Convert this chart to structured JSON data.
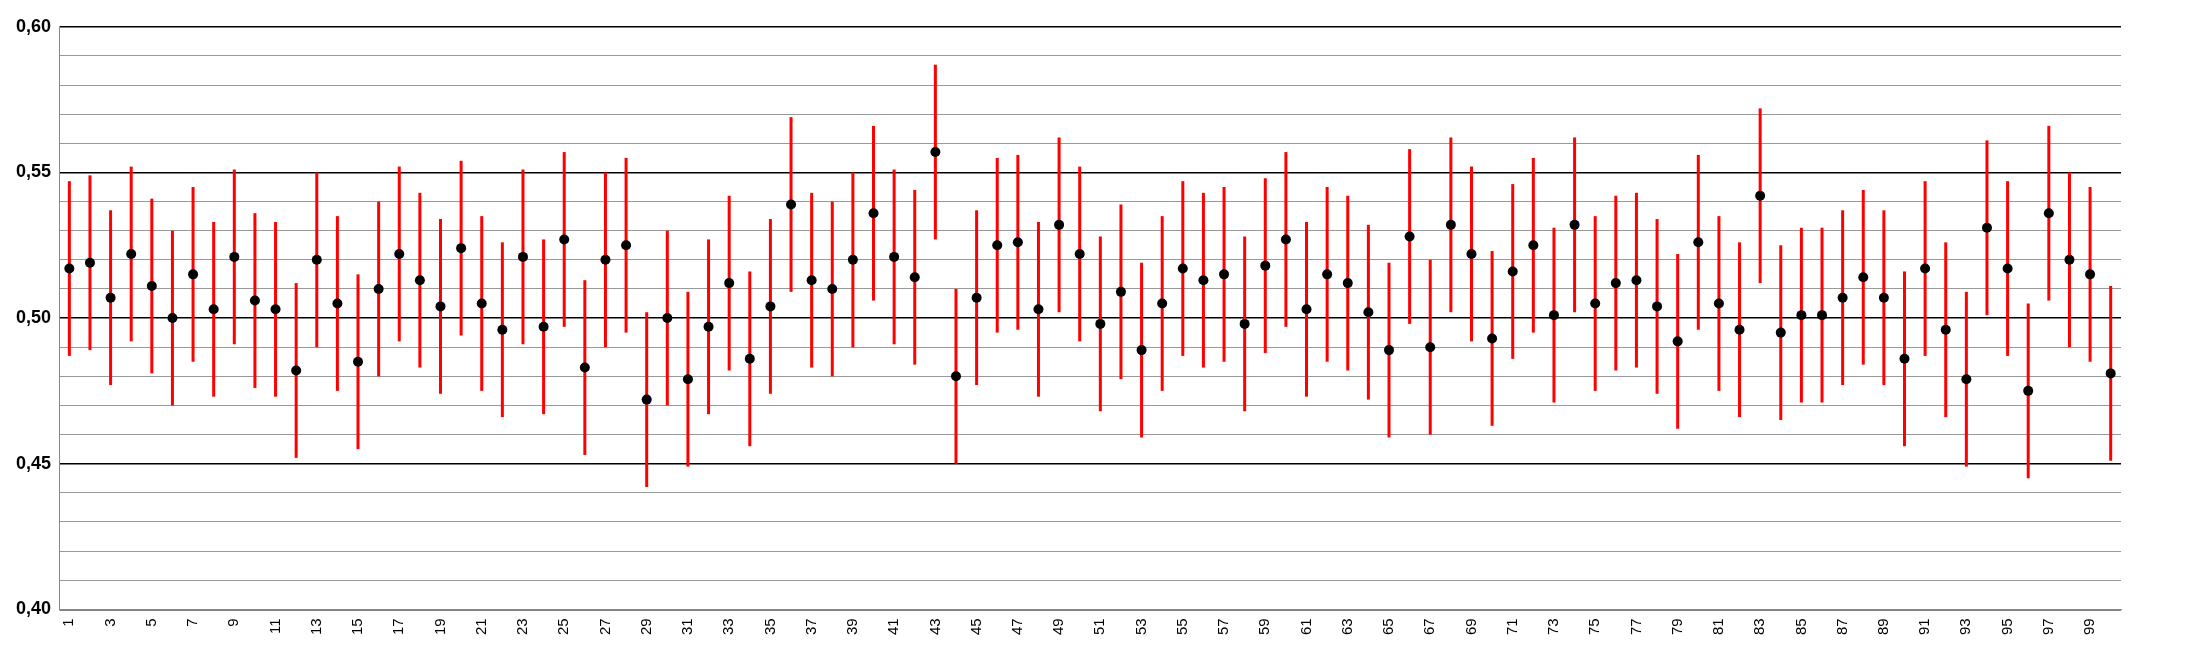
{
  "chart_data": {
    "type": "scatter",
    "categories": [
      "1",
      null,
      "3",
      null,
      "5",
      null,
      "7",
      null,
      "9",
      null,
      "11",
      null,
      "13",
      null,
      "15",
      null,
      "17",
      null,
      "19",
      null,
      "21",
      null,
      "23",
      null,
      "25",
      null,
      "27",
      null,
      "29",
      null,
      "31",
      null,
      "33",
      null,
      "35",
      null,
      "37",
      null,
      "39",
      null,
      "41",
      null,
      "43",
      null,
      "45",
      null,
      "47",
      null,
      "49",
      null,
      "51",
      null,
      "53",
      null,
      "55",
      null,
      "57",
      null,
      "59",
      null,
      "61",
      null,
      "63",
      null,
      "65",
      null,
      "67",
      null,
      "69",
      null,
      "71",
      null,
      "73",
      null,
      "75",
      null,
      "77",
      null,
      "79",
      null,
      "81",
      null,
      "83",
      null,
      "85",
      null,
      "87",
      null,
      "89",
      null,
      "91",
      null,
      "93",
      null,
      "95",
      null,
      "97",
      null,
      "99",
      null
    ],
    "values": [
      0.517,
      0.519,
      0.507,
      0.522,
      0.511,
      0.5,
      0.515,
      0.503,
      0.521,
      0.506,
      0.503,
      0.482,
      0.52,
      0.505,
      0.485,
      0.51,
      0.522,
      0.513,
      0.504,
      0.524,
      0.505,
      0.496,
      0.521,
      0.497,
      0.527,
      0.483,
      0.52,
      0.525,
      0.472,
      0.5,
      0.479,
      0.497,
      0.512,
      0.486,
      0.504,
      0.539,
      0.513,
      0.51,
      0.52,
      0.536,
      0.521,
      0.514,
      0.557,
      0.48,
      0.507,
      0.525,
      0.526,
      0.503,
      0.532,
      0.522,
      0.498,
      0.509,
      0.489,
      0.505,
      0.517,
      0.513,
      0.515,
      0.498,
      0.518,
      0.527,
      0.503,
      0.515,
      0.512,
      0.502,
      0.489,
      0.528,
      0.49,
      0.532,
      0.522,
      0.493,
      0.516,
      0.525,
      0.501,
      0.532,
      0.505,
      0.512,
      0.513,
      0.504,
      0.492,
      0.526,
      0.505,
      0.496,
      0.542,
      0.495,
      0.501,
      0.501,
      0.507,
      0.514,
      0.507,
      0.486,
      0.517,
      0.496,
      0.479,
      0.531,
      0.517,
      0.475,
      0.536,
      0.52,
      0.515,
      0.481
    ],
    "errors": [
      0.03,
      0.03,
      0.03,
      0.03,
      0.03,
      0.03,
      0.03,
      0.03,
      0.03,
      0.03,
      0.03,
      0.03,
      0.03,
      0.03,
      0.03,
      0.03,
      0.03,
      0.03,
      0.03,
      0.03,
      0.03,
      0.03,
      0.03,
      0.03,
      0.03,
      0.03,
      0.03,
      0.03,
      0.03,
      0.03,
      0.03,
      0.03,
      0.03,
      0.03,
      0.03,
      0.03,
      0.03,
      0.03,
      0.03,
      0.03,
      0.03,
      0.03,
      0.03,
      0.03,
      0.03,
      0.03,
      0.03,
      0.03,
      0.03,
      0.03,
      0.03,
      0.03,
      0.03,
      0.03,
      0.03,
      0.03,
      0.03,
      0.03,
      0.03,
      0.03,
      0.03,
      0.03,
      0.03,
      0.03,
      0.03,
      0.03,
      0.03,
      0.03,
      0.03,
      0.03,
      0.03,
      0.03,
      0.03,
      0.03,
      0.03,
      0.03,
      0.03,
      0.03,
      0.03,
      0.03,
      0.03,
      0.03,
      0.03,
      0.03,
      0.03,
      0.03,
      0.03,
      0.03,
      0.03,
      0.03,
      0.03,
      0.03,
      0.03,
      0.03,
      0.03,
      0.03,
      0.03,
      0.03,
      0.03,
      0.03
    ],
    "color": "#000000",
    "marker": "circle",
    "ylim": [
      0.4,
      0.6
    ],
    "yticks": [
      {
        "value": 0.4,
        "label": "0,40"
      },
      {
        "value": 0.41,
        "label": null
      },
      {
        "value": 0.42,
        "label": null
      },
      {
        "value": 0.43,
        "label": null
      },
      {
        "value": 0.44,
        "label": null
      },
      {
        "value": 0.45,
        "label": "0,45"
      },
      {
        "value": 0.46,
        "label": null
      },
      {
        "value": 0.47,
        "label": null
      },
      {
        "value": 0.48,
        "label": null
      },
      {
        "value": 0.49,
        "label": null
      },
      {
        "value": 0.5,
        "label": "0,50"
      },
      {
        "value": 0.51,
        "label": null
      },
      {
        "value": 0.52,
        "label": null
      },
      {
        "value": 0.53,
        "label": null
      },
      {
        "value": 0.54,
        "label": null
      },
      {
        "value": 0.55,
        "label": "0,55"
      },
      {
        "value": 0.56,
        "label": null
      },
      {
        "value": 0.57,
        "label": null
      },
      {
        "value": 0.58,
        "label": null
      },
      {
        "value": 0.59,
        "label": null
      },
      {
        "value": 0.6,
        "label": "0,60"
      }
    ],
    "grid": "y",
    "legend": false
  }
}
